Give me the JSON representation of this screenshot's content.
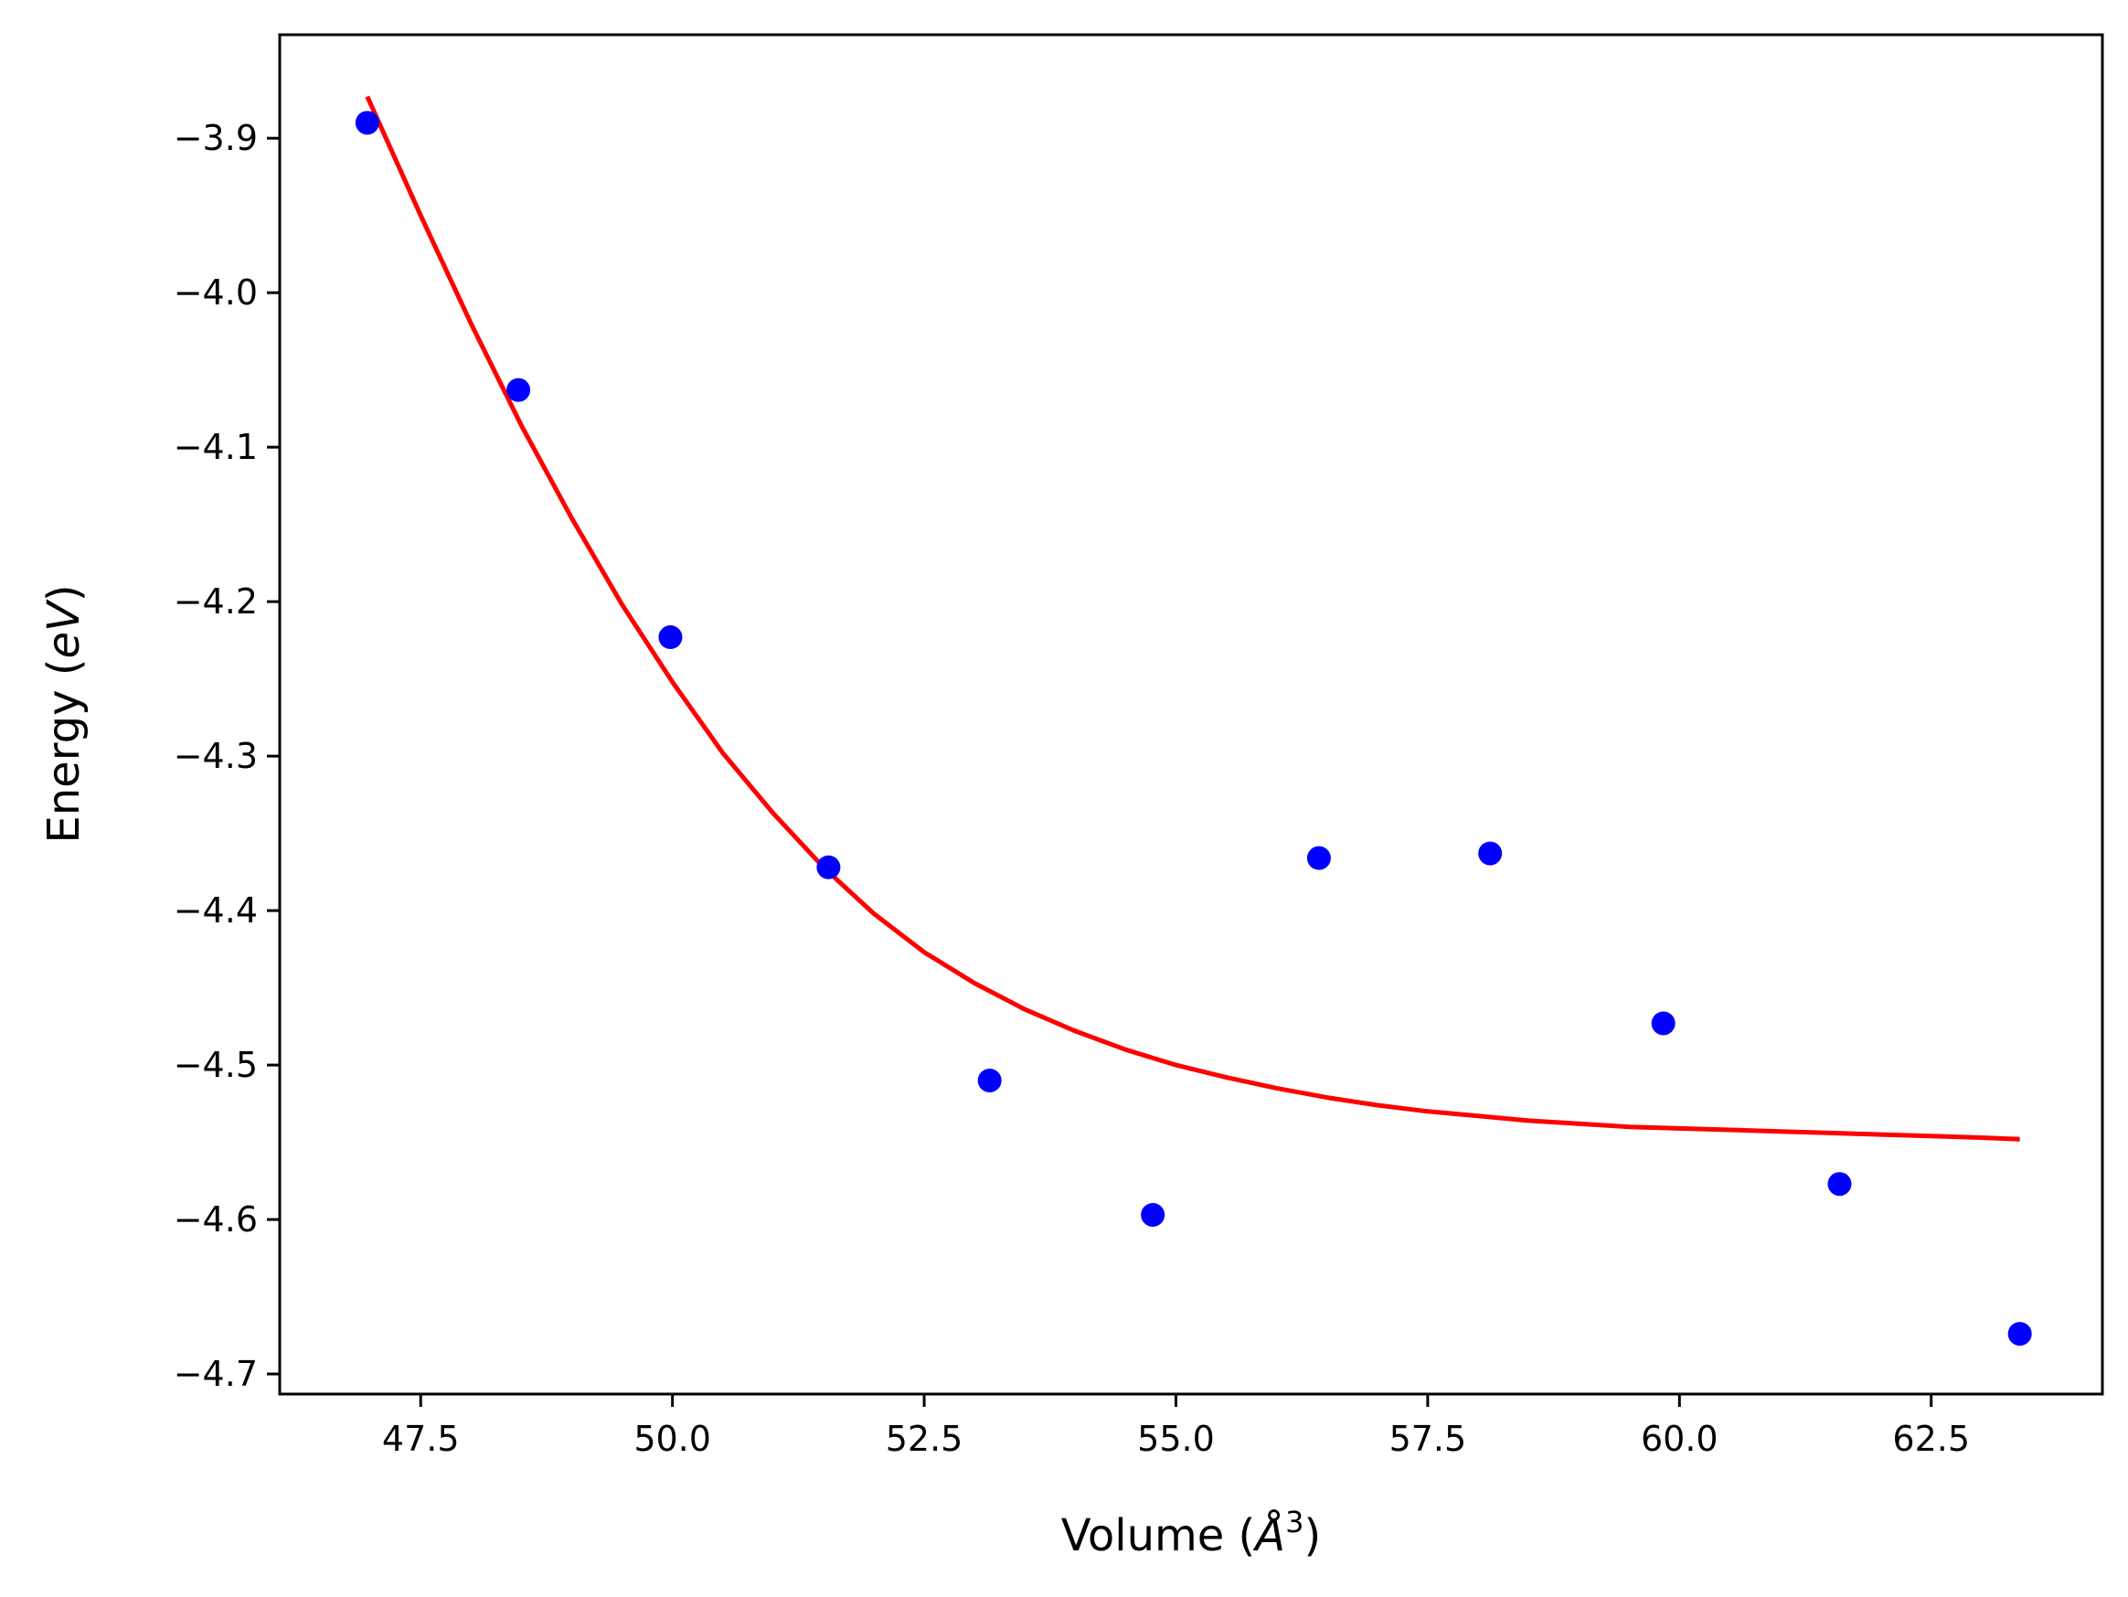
{
  "chart_data": {
    "type": "scatter",
    "xlabel": "Volume (",
    "xlabel_unit": "Å",
    "xlabel_exp": "3",
    "xlabel_close": ")",
    "ylabel": "Energy (",
    "ylabel_unit": "eV",
    "ylabel_close": ")",
    "xlim": [
      46.1,
      64.2
    ],
    "ylim": [
      -4.713,
      -3.833
    ],
    "x_ticks": [
      47.5,
      50.0,
      52.5,
      55.0,
      57.5,
      60.0,
      62.5
    ],
    "x_tick_labels": [
      "47.5",
      "50.0",
      "52.5",
      "55.0",
      "57.5",
      "60.0",
      "62.5"
    ],
    "y_ticks": [
      -3.9,
      -4.0,
      -4.1,
      -4.2,
      -4.3,
      -4.4,
      -4.5,
      -4.6,
      -4.7
    ],
    "y_tick_labels": [
      "−3.9",
      "−4.0",
      "−4.1",
      "−4.2",
      "−4.3",
      "−4.4",
      "−4.5",
      "−4.6",
      "−4.7"
    ],
    "grid": false,
    "series": [
      {
        "kind": "points",
        "color": "#0000ff",
        "x": [
          46.97,
          48.47,
          49.98,
          51.55,
          53.15,
          54.77,
          56.42,
          58.12,
          59.84,
          61.59,
          63.38
        ],
        "y": [
          -3.89,
          -4.063,
          -4.223,
          -4.372,
          -4.51,
          -4.597,
          -4.366,
          -4.363,
          -4.473,
          -4.577,
          -4.674
        ]
      },
      {
        "kind": "line",
        "color": "#ff0000",
        "x": [
          46.97,
          47.5,
          48.0,
          48.5,
          49.0,
          49.5,
          50.0,
          50.5,
          51.0,
          51.5,
          52.0,
          52.5,
          53.0,
          53.5,
          54.0,
          54.5,
          55.0,
          55.5,
          56.0,
          56.5,
          57.0,
          57.5,
          58.0,
          58.5,
          59.0,
          59.5,
          60.0,
          60.5,
          61.0,
          61.5,
          62.0,
          62.5,
          63.0,
          63.38
        ],
        "y": [
          -3.873,
          -3.95,
          -4.02,
          -4.086,
          -4.146,
          -4.202,
          -4.252,
          -4.298,
          -4.337,
          -4.372,
          -4.402,
          -4.427,
          -4.447,
          -4.464,
          -4.478,
          -4.49,
          -4.5,
          -4.508,
          -4.515,
          -4.521,
          -4.526,
          -4.53,
          -4.533,
          -4.536,
          -4.538,
          -4.54,
          -4.541,
          -4.542,
          -4.543,
          -4.544,
          -4.545,
          -4.546,
          -4.547,
          -4.548
        ]
      }
    ]
  }
}
